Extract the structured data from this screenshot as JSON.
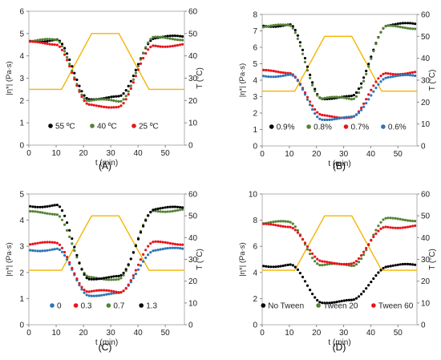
{
  "chart_data": [
    {
      "type": "scatter",
      "panel_label": "(A)",
      "xlabel": "t (min)",
      "ylabel": "|η*| (Pa·s)",
      "y2label": "T (°C)",
      "xlim": [
        0,
        57
      ],
      "ylim": [
        0,
        6
      ],
      "y2lim": [
        0,
        60
      ],
      "xticks": [
        "0",
        "10",
        "20",
        "30",
        "40",
        "50"
      ],
      "yticks": [
        "0",
        "1",
        "2",
        "3",
        "4",
        "5",
        "6"
      ],
      "y2ticks": [
        "0",
        "10",
        "20",
        "30",
        "40",
        "50",
        "60"
      ],
      "legend_position": "bottom",
      "series": [
        {
          "name": "55 ºC",
          "color": "#000000",
          "high": 4.7,
          "low": 2.12,
          "high_end": 4.83
        },
        {
          "name": "40 ºC",
          "color": "#548235",
          "high": 4.68,
          "low": 1.98,
          "high_end": 4.78
        },
        {
          "name": "25 ºC",
          "color": "#e8141b",
          "high": 4.57,
          "low": 1.76,
          "high_end": 4.48
        }
      ],
      "temperature": {
        "color": "#f4b400",
        "x": [
          0,
          12,
          23,
          33,
          44,
          57
        ],
        "y": [
          25,
          25,
          50,
          50,
          25,
          25
        ]
      }
    },
    {
      "type": "scatter",
      "panel_label": "(B)",
      "xlabel": "t (min)",
      "ylabel": "|η*| (Pa·s)",
      "y2label": "T (°C)",
      "xlim": [
        0,
        57
      ],
      "ylim": [
        0,
        8
      ],
      "y2lim": [
        0,
        60
      ],
      "xticks": [
        "0",
        "10",
        "20",
        "30",
        "40",
        "50"
      ],
      "yticks": [
        "0",
        "1",
        "2",
        "3",
        "4",
        "5",
        "6",
        "7",
        "8"
      ],
      "y2ticks": [
        "0",
        "10",
        "20",
        "30",
        "40",
        "50",
        "60"
      ],
      "legend_position": "bottom",
      "series": [
        {
          "name": "0.9%",
          "color": "#000000",
          "high": 7.35,
          "low": 2.95,
          "high_end": 7.38
        },
        {
          "name": "0.8%",
          "color": "#548235",
          "high": 7.28,
          "low": 2.88,
          "high_end": 7.22
        },
        {
          "name": "0.7%",
          "color": "#e8141b",
          "high": 4.52,
          "low": 1.8,
          "high_end": 4.45
        },
        {
          "name": "0.6%",
          "color": "#2e75b6",
          "high": 4.3,
          "low": 1.68,
          "high_end": 4.22
        }
      ],
      "temperature": {
        "color": "#f4b400",
        "x": [
          0,
          12,
          23,
          33,
          44,
          57
        ],
        "y": [
          25,
          25,
          50,
          50,
          25,
          25
        ]
      }
    },
    {
      "type": "scatter",
      "panel_label": "(C)",
      "xlabel": "t (min)",
      "ylabel": "|η*| (Pa·s)",
      "y2label": "T (°C)",
      "xlim": [
        0,
        57
      ],
      "ylim": [
        0,
        5
      ],
      "y2lim": [
        0,
        60
      ],
      "xticks": [
        "0",
        "10",
        "20",
        "30",
        "40",
        "50"
      ],
      "yticks": [
        "0",
        "1",
        "2",
        "3",
        "4",
        "5"
      ],
      "y2ticks": [
        "0",
        "10",
        "20",
        "30",
        "40",
        "50",
        "60"
      ],
      "legend_position": "bottom",
      "series": [
        {
          "name": "0",
          "color": "#2e75b6",
          "high": 2.88,
          "low": 1.16,
          "high_end": 2.88
        },
        {
          "name": "0.3",
          "color": "#e8141b",
          "high": 3.1,
          "low": 1.26,
          "high_end": 3.12
        },
        {
          "name": "0.7",
          "color": "#548235",
          "high": 4.28,
          "low": 1.78,
          "high_end": 4.38
        },
        {
          "name": "1.3",
          "color": "#000000",
          "high": 4.56,
          "low": 1.8,
          "high_end": 4.45
        }
      ],
      "temperature": {
        "color": "#f4b400",
        "x": [
          0,
          12,
          23,
          33,
          44,
          57
        ],
        "y": [
          25,
          25,
          50,
          50,
          25,
          25
        ]
      }
    },
    {
      "type": "scatter",
      "panel_label": "(D)",
      "xlabel": "t (min)",
      "ylabel": "|η*| (Pa·s)",
      "y2label": "T (°C)",
      "xlim": [
        0,
        57
      ],
      "ylim": [
        0,
        10
      ],
      "y2lim": [
        0,
        60
      ],
      "xticks": [
        "0",
        "10",
        "20",
        "30",
        "40",
        "50"
      ],
      "yticks": [
        "0",
        "2",
        "4",
        "6",
        "8",
        "10"
      ],
      "y2ticks": [
        "0",
        "10",
        "20",
        "30",
        "40",
        "50",
        "60"
      ],
      "legend_position": "bottom",
      "series": [
        {
          "name": "No Tween",
          "color": "#000000",
          "high": 4.55,
          "low": 1.78,
          "high_end": 4.52
        },
        {
          "name": "Tween 20",
          "color": "#548235",
          "high": 7.8,
          "low": 4.55,
          "high_end": 8.05
        },
        {
          "name": "Tween 60",
          "color": "#e8141b",
          "high": 7.6,
          "low": 4.75,
          "high_end": 7.52
        }
      ],
      "temperature": {
        "color": "#f4b400",
        "x": [
          0,
          12,
          23,
          33,
          44,
          57
        ],
        "y": [
          25,
          25,
          50,
          50,
          25,
          25
        ]
      }
    }
  ]
}
